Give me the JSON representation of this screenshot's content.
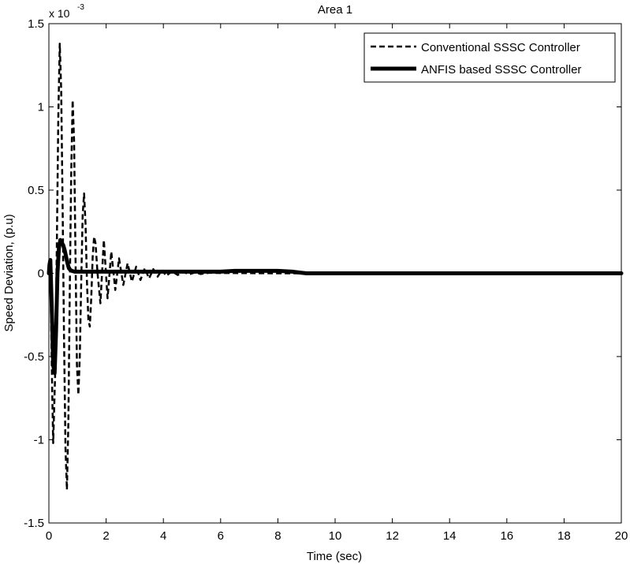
{
  "chart_data": {
    "type": "line",
    "title": "Area 1",
    "xlabel": "Time (sec)",
    "ylabel": "Speed Deviation, (p.u)",
    "y_multiplier": "x 10",
    "y_multiplier_exp": "-3",
    "xlim": [
      0,
      20
    ],
    "ylim": [
      -1.5,
      1.5
    ],
    "x_ticks": [
      0,
      2,
      4,
      6,
      8,
      10,
      12,
      14,
      16,
      18,
      20
    ],
    "x_tick_labels": [
      "0",
      "2",
      "4",
      "6",
      "8",
      "10",
      "12",
      "14",
      "16",
      "18",
      "20"
    ],
    "y_ticks": [
      1.5,
      1,
      0.5,
      0,
      -0.5,
      -1,
      -1.5
    ],
    "y_tick_labels": [
      "1.5",
      "1",
      "0.5",
      "0",
      "-0.5",
      "-1",
      "-1.5"
    ],
    "grid": false,
    "legend_position": "top-right",
    "series": [
      {
        "name": "Conventional SSSC Controller",
        "style": "dashed",
        "color": "#000000",
        "x": [
          0,
          0.05,
          0.1,
          0.15,
          0.22,
          0.28,
          0.33,
          0.38,
          0.43,
          0.48,
          0.53,
          0.58,
          0.63,
          0.68,
          0.73,
          0.78,
          0.83,
          0.88,
          0.93,
          0.98,
          1.03,
          1.08,
          1.13,
          1.18,
          1.23,
          1.28,
          1.33,
          1.38,
          1.43,
          1.48,
          1.53,
          1.58,
          1.63,
          1.7,
          1.8,
          1.92,
          2.05,
          2.18,
          2.32,
          2.45,
          2.6,
          2.75,
          2.9,
          3.05,
          3.2,
          3.35,
          3.5,
          3.65,
          3.8,
          3.95,
          4.1,
          4.3,
          4.5,
          4.7,
          4.9,
          5.1,
          5.3,
          5.6,
          6.0,
          7.0,
          8.0,
          9.0,
          10.0,
          12.0,
          14.0,
          16.0,
          18.0,
          20.0
        ],
        "y": [
          0,
          0.05,
          -0.55,
          -1.02,
          -0.6,
          0.2,
          0.95,
          1.38,
          1.1,
          0.4,
          -0.4,
          -1.05,
          -1.3,
          -0.9,
          -0.1,
          0.6,
          1.04,
          0.8,
          0.1,
          -0.55,
          -0.73,
          -0.5,
          -0.05,
          0.35,
          0.48,
          0.3,
          -0.05,
          -0.28,
          -0.32,
          -0.15,
          0.1,
          0.22,
          0.18,
          0.0,
          -0.18,
          0.2,
          -0.15,
          0.13,
          -0.1,
          0.09,
          -0.07,
          0.06,
          -0.05,
          0.04,
          -0.04,
          0.03,
          -0.03,
          0.025,
          -0.02,
          0.02,
          -0.015,
          0.012,
          -0.01,
          0.008,
          -0.006,
          0.005,
          -0.004,
          0.003,
          0.002,
          0.001,
          0.0,
          0.0,
          0.0,
          0.0,
          0.0,
          0.0,
          0.0,
          0.0
        ]
      },
      {
        "name": "ANFIS based SSSC Controller",
        "style": "solid",
        "color": "#000000",
        "x": [
          0,
          0.02,
          0.05,
          0.1,
          0.15,
          0.2,
          0.25,
          0.3,
          0.35,
          0.4,
          0.45,
          0.5,
          0.55,
          0.6,
          0.65,
          0.7,
          0.75,
          0.8,
          0.9,
          1.0,
          1.5,
          2.0,
          4.0,
          6.0,
          6.5,
          8.0,
          8.5,
          9.0,
          12.0,
          16.0,
          20.0
        ],
        "y": [
          0,
          0.05,
          0.08,
          -0.2,
          -0.55,
          -0.6,
          -0.35,
          0.0,
          0.15,
          0.2,
          0.18,
          0.17,
          0.14,
          0.1,
          0.06,
          0.03,
          0.02,
          0.015,
          0.01,
          0.01,
          0.01,
          0.01,
          0.01,
          0.01,
          0.015,
          0.015,
          0.01,
          0.0,
          0.0,
          0.0,
          0.0
        ]
      }
    ]
  }
}
